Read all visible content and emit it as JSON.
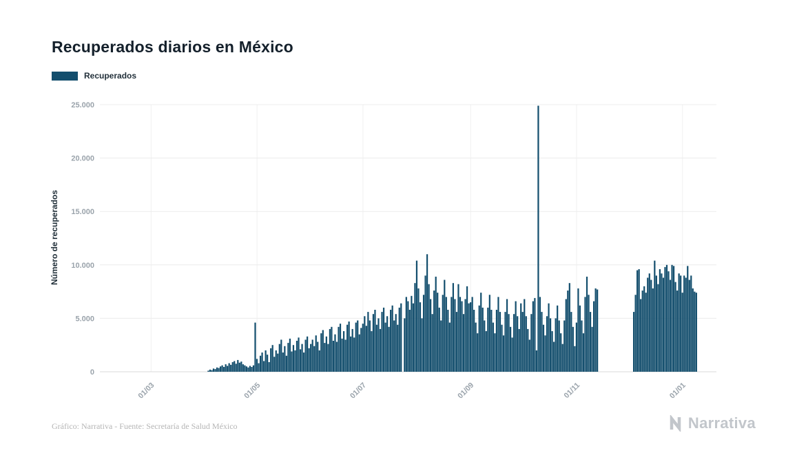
{
  "header": {
    "title": "Recuperados diarios en México"
  },
  "legend": {
    "label": "Recuperados"
  },
  "footer": {
    "credit": "Gráfico: Narrativa - Fuente: Secretaría de Salud México",
    "brand": "Narrativa"
  },
  "colors": {
    "bar": "#134e6d",
    "grid": "#ececec",
    "grid_vertical": "#f0f0f0",
    "axis_line": "#d8d8d8",
    "tick_text": "#9aa3ab",
    "title_text": "#14202b",
    "footer_text": "#b5b5b5",
    "logo": "#c2c6cb"
  },
  "chart_data": {
    "type": "bar",
    "title": "Recuperados diarios en México",
    "series_name": "Recuperados",
    "xlabel": "",
    "ylabel": "Número de recuperados",
    "ylim": [
      0,
      25000
    ],
    "yticks": [
      0,
      5000,
      10000,
      15000,
      20000,
      25000
    ],
    "ytick_labels": [
      "0",
      "5.000",
      "10.000",
      "15.000",
      "20.000",
      "25.000"
    ],
    "legend_position": "top-left",
    "grid": true,
    "x_unit": "day",
    "xticks": [
      {
        "index": 29,
        "label": "01/03"
      },
      {
        "index": 90,
        "label": "01/05"
      },
      {
        "index": 151,
        "label": "01/07"
      },
      {
        "index": 213,
        "label": "01/09"
      },
      {
        "index": 274,
        "label": "01/11"
      },
      {
        "index": 335,
        "label": "01/01"
      }
    ],
    "values": [
      0,
      0,
      0,
      0,
      0,
      0,
      0,
      0,
      0,
      0,
      0,
      0,
      0,
      0,
      0,
      0,
      0,
      0,
      0,
      0,
      0,
      0,
      0,
      0,
      0,
      0,
      0,
      0,
      0,
      0,
      0,
      0,
      0,
      0,
      0,
      0,
      0,
      0,
      0,
      0,
      0,
      0,
      0,
      0,
      0,
      0,
      0,
      0,
      0,
      0,
      0,
      0,
      0,
      0,
      0,
      0,
      0,
      0,
      0,
      0,
      0,
      0,
      100,
      200,
      150,
      300,
      250,
      400,
      350,
      500,
      600,
      450,
      700,
      550,
      800,
      650,
      900,
      1000,
      750,
      1100,
      850,
      950,
      700,
      600,
      500,
      400,
      550,
      450,
      600,
      4600,
      1200,
      800,
      1500,
      1800,
      1000,
      2000,
      1600,
      900,
      2200,
      2500,
      1400,
      2000,
      1700,
      2600,
      3000,
      1800,
      2400,
      1500,
      2700,
      3100,
      1900,
      2500,
      2000,
      2900,
      3200,
      2100,
      2600,
      1800,
      3000,
      3300,
      2200,
      2600,
      3000,
      2400,
      3400,
      2800,
      2000,
      3600,
      3900,
      2700,
      3300,
      2600,
      4000,
      4200,
      2900,
      3500,
      2800,
      4200,
      4500,
      3100,
      3800,
      3000,
      4400,
      4700,
      3300,
      4000,
      3200,
      4600,
      4800,
      3500,
      4100,
      4500,
      5200,
      4300,
      5600,
      4800,
      3800,
      5400,
      5800,
      4400,
      5000,
      4000,
      5600,
      6000,
      4600,
      5200,
      4200,
      5800,
      6200,
      4800,
      5400,
      4400,
      6000,
      6400,
      0,
      5000,
      7000,
      6600,
      5800,
      7100,
      6400,
      8300,
      10400,
      7800,
      6500,
      5000,
      7200,
      9000,
      11000,
      8200,
      6800,
      5400,
      7600,
      8900,
      7400,
      6000,
      4800,
      7200,
      8600,
      7000,
      5800,
      4600,
      7000,
      8300,
      6800,
      5600,
      8200,
      7000,
      6600,
      5400,
      6800,
      8000,
      6400,
      6500,
      7000,
      5800,
      4600,
      3600,
      6200,
      7400,
      6000,
      4800,
      3800,
      6000,
      7200,
      5800,
      4600,
      3600,
      5800,
      7000,
      5600,
      4400,
      3400,
      5600,
      6800,
      5400,
      4200,
      3200,
      5400,
      6600,
      5200,
      4000,
      6400,
      5600,
      6800,
      5200,
      4000,
      3000,
      5400,
      6600,
      6900,
      2000,
      24900,
      7000,
      5600,
      4400,
      3400,
      5200,
      6400,
      5000,
      3800,
      2800,
      5000,
      6200,
      4800,
      3600,
      2600,
      4800,
      6800,
      7600,
      8300,
      5600,
      4200,
      2400,
      4600,
      7800,
      6200,
      4800,
      3600,
      7000,
      8900,
      7200,
      5600,
      4200,
      6600,
      7800,
      7700,
      0,
      0,
      0,
      0,
      0,
      0,
      0,
      0,
      0,
      0,
      0,
      0,
      0,
      0,
      0,
      0,
      0,
      0,
      0,
      0,
      5600,
      7200,
      9500,
      9600,
      6800,
      7600,
      8000,
      7400,
      8800,
      9200,
      8600,
      7800,
      10400,
      9000,
      8200,
      9600,
      9200,
      8800,
      9800,
      10000,
      9400,
      8600,
      10000,
      9900,
      8400,
      7600,
      9200,
      9000,
      7400,
      9000,
      8800,
      9900,
      8600,
      9000,
      7800,
      7500,
      7400,
      0,
      0,
      0,
      0,
      0,
      0,
      0,
      0,
      0,
      0,
      0
    ]
  }
}
